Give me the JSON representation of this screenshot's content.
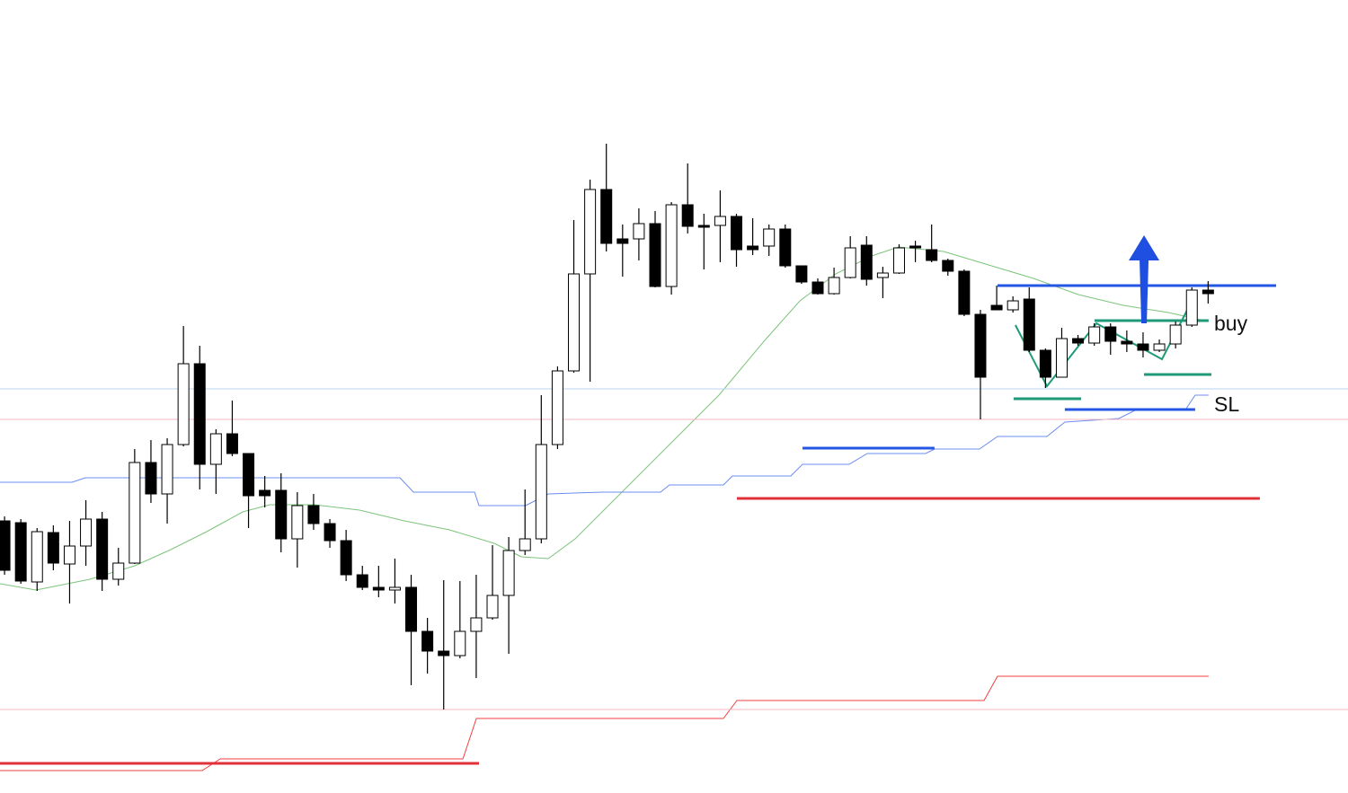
{
  "chart_data": {
    "type": "candlestick",
    "xlim": [
      0.72,
      83.6
    ],
    "ylim": [
      0,
      883
    ],
    "up_color": "#ffffff",
    "down_color": "#000000",
    "open": [
      303,
      301,
      235,
      290,
      255,
      275,
      305,
      238,
      256,
      368,
      333,
      388,
      478,
      366,
      400,
      378,
      337,
      337,
      283,
      320,
      300,
      281,
      243,
      229,
      226,
      229,
      180,
      158,
      153,
      180,
      195,
      220,
      270,
      283,
      388,
      470,
      578,
      672,
      617,
      617,
      634,
      564,
      655,
      632,
      632,
      642,
      609,
      609,
      628,
      587,
      569,
      556,
      574,
      610,
      574,
      579,
      609,
      605,
      593,
      581,
      533,
      543,
      538,
      550,
      493,
      463,
      506,
      501,
      519,
      503,
      500,
      493,
      500,
      521,
      560
    ],
    "high": [
      308,
      305,
      295,
      298,
      303,
      326,
      313,
      273,
      383,
      393,
      395,
      520,
      498,
      405,
      437,
      378,
      353,
      356,
      335,
      333,
      305,
      293,
      253,
      253,
      261,
      243,
      195,
      237,
      236,
      243,
      276,
      285,
      338,
      443,
      475,
      638,
      683,
      723,
      633,
      651,
      648,
      658,
      701,
      645,
      671,
      645,
      640,
      633,
      633,
      587,
      573,
      585,
      620,
      620,
      586,
      611,
      615,
      633,
      595,
      583,
      538,
      565,
      553,
      563,
      495,
      518,
      510,
      523,
      523,
      515,
      513,
      505,
      525,
      563,
      570
    ],
    "low": [
      243,
      233,
      225,
      248,
      211,
      253,
      225,
      231,
      255,
      323,
      300,
      386,
      338,
      333,
      375,
      295,
      318,
      268,
      251,
      293,
      273,
      236,
      226,
      218,
      211,
      120,
      133,
      93,
      150,
      128,
      193,
      155,
      265,
      278,
      383,
      468,
      458,
      603,
      575,
      593,
      563,
      555,
      623,
      583,
      591,
      586,
      599,
      598,
      585,
      567,
      555,
      555,
      573,
      565,
      551,
      578,
      591,
      591,
      576,
      531,
      416,
      538,
      535,
      491,
      451,
      463,
      498,
      498,
      488,
      491,
      485,
      491,
      495,
      519,
      545
    ],
    "close": [
      248,
      236,
      291,
      256,
      275,
      305,
      238,
      256,
      368,
      333,
      388,
      478,
      366,
      400,
      378,
      331,
      331,
      283,
      320,
      300,
      281,
      243,
      229,
      226,
      229,
      180,
      158,
      153,
      180,
      195,
      220,
      270,
      283,
      388,
      470,
      578,
      672,
      612,
      612,
      634,
      564,
      655,
      631,
      630,
      642,
      605,
      605,
      628,
      587,
      569,
      556,
      574,
      607,
      572,
      579,
      607,
      607,
      593,
      581,
      533,
      463,
      538,
      548,
      493,
      463,
      506,
      501,
      519,
      503,
      500,
      493,
      500,
      521,
      560,
      556
    ],
    "lines": [
      {
        "color": "#7cc47c",
        "width": 1,
        "points": [
          [
            0.72,
            233
          ],
          [
            2.93,
            226
          ],
          [
            6.25,
            238
          ],
          [
            9.01,
            253
          ],
          [
            11.22,
            271
          ],
          [
            13.43,
            291
          ],
          [
            15.64,
            313
          ],
          [
            17.3,
            321
          ],
          [
            20.06,
            321
          ],
          [
            22.82,
            315
          ],
          [
            25.59,
            303
          ],
          [
            28.35,
            293
          ],
          [
            31.11,
            278
          ],
          [
            32.77,
            263
          ],
          [
            34.43,
            261
          ],
          [
            36.08,
            283
          ],
          [
            39.4,
            343
          ],
          [
            42.16,
            393
          ],
          [
            44.92,
            443
          ],
          [
            47.69,
            503
          ],
          [
            49.9,
            548
          ],
          [
            52.1,
            578
          ],
          [
            54.31,
            598
          ],
          [
            55.97,
            608
          ],
          [
            58.73,
            603
          ],
          [
            61.5,
            588
          ],
          [
            64.26,
            573
          ],
          [
            67.02,
            555
          ],
          [
            69.78,
            543
          ],
          [
            72.55,
            535
          ],
          [
            74.76,
            526
          ]
        ]
      },
      {
        "color": "#6b8cf0",
        "width": 1,
        "points": [
          [
            0.72,
            346
          ],
          [
            5.14,
            346
          ],
          [
            5.97,
            351
          ],
          [
            25.31,
            351
          ],
          [
            26.14,
            335
          ],
          [
            29.9,
            335
          ],
          [
            30.17,
            320
          ],
          [
            33.04,
            320
          ],
          [
            34.43,
            333
          ],
          [
            37.74,
            335
          ],
          [
            41.33,
            335
          ],
          [
            41.88,
            343
          ],
          [
            45.2,
            343
          ],
          [
            45.75,
            353
          ],
          [
            49.34,
            353
          ],
          [
            50.06,
            366
          ],
          [
            52.93,
            366
          ],
          [
            54.04,
            378
          ],
          [
            57.63,
            378
          ],
          [
            58.18,
            383
          ],
          [
            60.94,
            383
          ],
          [
            62.05,
            397
          ],
          [
            65.09,
            397
          ],
          [
            66.19,
            413
          ],
          [
            69.51,
            417
          ],
          [
            70.61,
            427
          ],
          [
            73.65,
            428
          ],
          [
            74.2,
            443
          ],
          [
            75.03,
            443
          ]
        ]
      },
      {
        "color": "#f04040",
        "width": 1,
        "points": [
          [
            0.72,
            25
          ],
          [
            13.15,
            25
          ],
          [
            14.26,
            38
          ],
          [
            29.18,
            38
          ],
          [
            30.01,
            83
          ],
          [
            45.2,
            83
          ],
          [
            46.03,
            103
          ],
          [
            61.22,
            103
          ],
          [
            62.05,
            130
          ],
          [
            75.03,
            130
          ]
        ]
      },
      {
        "color": "#b8d4f0",
        "width": 1,
        "points": [
          [
            0.72,
            450
          ],
          [
            83.6,
            450
          ]
        ]
      },
      {
        "color": "#f5b8c0",
        "width": 1,
        "points": [
          [
            0.72,
            416
          ],
          [
            83.6,
            416
          ]
        ]
      },
      {
        "color": "#f5b8c0",
        "width": 1,
        "points": [
          [
            0.72,
            93
          ],
          [
            83.6,
            93
          ]
        ]
      },
      {
        "color": "#2456e6",
        "width": 3,
        "points": [
          [
            62.05,
            565
          ],
          [
            79.18,
            565
          ]
        ]
      },
      {
        "color": "#2456e6",
        "width": 3,
        "points": [
          [
            66.19,
            427
          ],
          [
            74.2,
            427
          ]
        ]
      },
      {
        "color": "#2456e6",
        "width": 3,
        "points": [
          [
            50.06,
            384
          ],
          [
            58.18,
            384
          ]
        ]
      },
      {
        "color": "#e0313a",
        "width": 3,
        "points": [
          [
            46.03,
            328
          ],
          [
            78.18,
            328
          ]
        ]
      },
      {
        "color": "#e0313a",
        "width": 3,
        "points": [
          [
            0.72,
            33
          ],
          [
            30.17,
            33
          ]
        ]
      },
      {
        "color": "#1f9a78",
        "width": 3,
        "points": [
          [
            68.02,
            526
          ],
          [
            75.03,
            526
          ]
        ]
      },
      {
        "color": "#1f9a78",
        "width": 3,
        "points": [
          [
            63.04,
            439
          ],
          [
            67.19,
            439
          ]
        ]
      },
      {
        "color": "#1f9a78",
        "width": 3,
        "points": [
          [
            71.06,
            466
          ],
          [
            75.2,
            466
          ]
        ]
      },
      {
        "color": "#1f9a78",
        "width": 2,
        "points": [
          [
            63.15,
            521
          ],
          [
            65.09,
            453
          ],
          [
            68.13,
            523
          ],
          [
            72.16,
            483
          ],
          [
            74.2,
            555
          ]
        ]
      }
    ],
    "arrow": {
      "x": 71.06,
      "from": 523,
      "to": 621,
      "color": "#1f4fe0"
    },
    "annotations": [
      "buy",
      "SL"
    ]
  }
}
